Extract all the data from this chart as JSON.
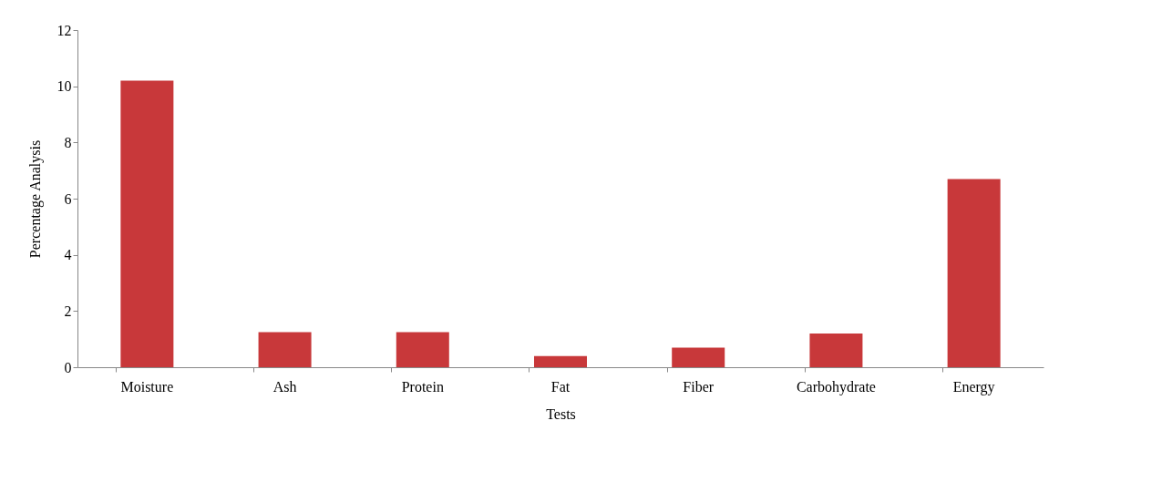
{
  "chart_data": {
    "type": "bar",
    "xlabel": "Tests",
    "ylabel": "Percentage  Analysis",
    "categories": [
      "Moisture",
      "Ash",
      "Protein",
      "Fat",
      "Fiber",
      "Carbohydrate",
      "Energy"
    ],
    "values": [
      10.2,
      1.25,
      1.25,
      0.4,
      0.7,
      1.2,
      6.7
    ],
    "color": "#c8383a",
    "ylim": [
      0,
      12
    ],
    "yticks": [
      0,
      2,
      4,
      6,
      8,
      10,
      12
    ],
    "grid": false
  }
}
